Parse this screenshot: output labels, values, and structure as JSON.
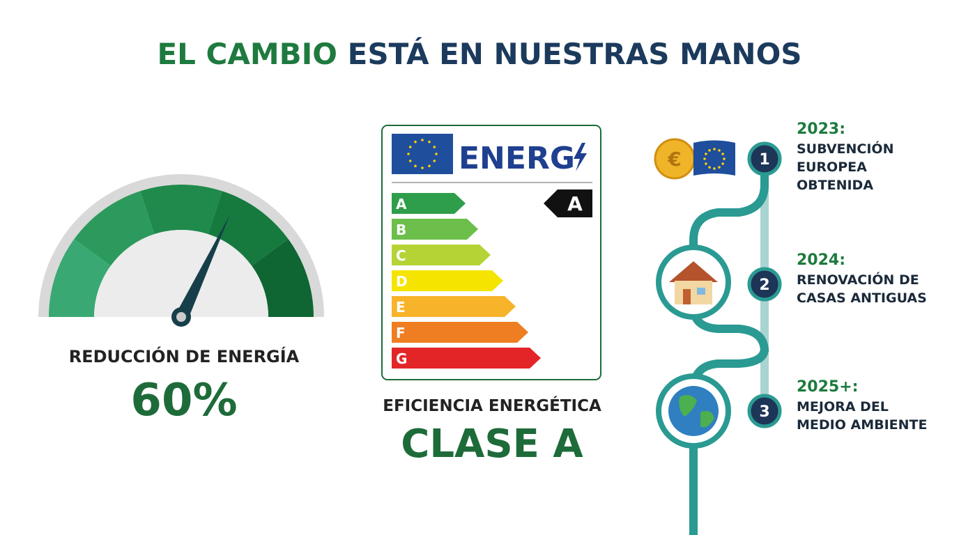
{
  "title": {
    "green": "EL CAMBIO",
    "navy": "ESTÁ EN NUESTRAS MANOS"
  },
  "gauge": {
    "label": "REDUCCIÓN DE ENERGÍA",
    "value": "60%"
  },
  "energy_label": {
    "header": "ENERG",
    "classes": [
      "A",
      "B",
      "C",
      "D",
      "E",
      "F",
      "G"
    ],
    "rating": "A",
    "caption": "EFICIENCIA ENERGÉTICA",
    "class": "CLASE A"
  },
  "timeline": [
    {
      "step": "1",
      "year": "2023:",
      "lines": [
        "SUBVENCIÓN",
        "EUROPEA",
        "OBTENIDA"
      ],
      "icon": "€"
    },
    {
      "step": "2",
      "year": "2024:",
      "lines": [
        "RENOVACIÓN DE",
        "CASAS ANTIGUAS"
      ]
    },
    {
      "step": "3",
      "year": "2025+:",
      "lines": [
        "MEJORA DEL",
        "MEDIO AMBIENTE"
      ]
    }
  ]
}
